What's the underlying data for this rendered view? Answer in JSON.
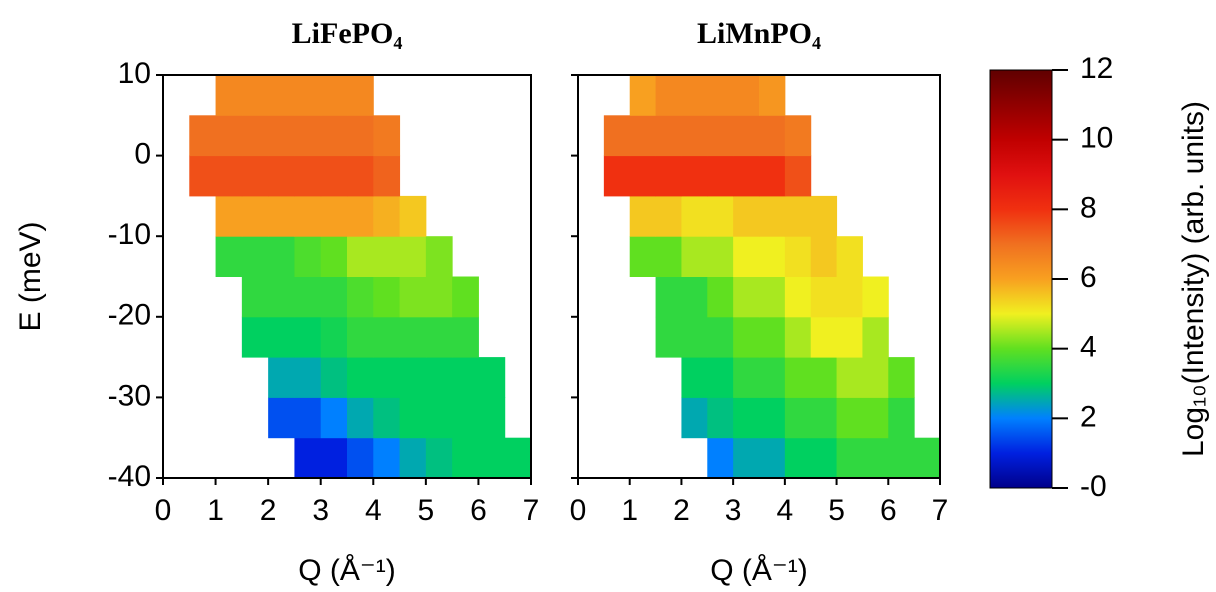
{
  "chart_data": [
    {
      "type": "heatmap",
      "title": "LiFePO₄",
      "xlabel": "Q (Å⁻¹)",
      "ylabel": "E (meV)",
      "xbins": [
        0,
        0.5,
        1,
        1.5,
        2,
        2.5,
        3,
        3.5,
        4,
        4.5,
        5,
        5.5,
        6,
        6.5,
        7
      ],
      "ybins": [
        -40,
        -35,
        -30,
        -25,
        -20,
        -15,
        -10,
        -5,
        0,
        5,
        10
      ],
      "z": [
        [
          null,
          null,
          null,
          null,
          null,
          1,
          1,
          1.5,
          2,
          2.5,
          2.8,
          3,
          3,
          3
        ],
        [
          null,
          null,
          null,
          null,
          1.5,
          1.5,
          2,
          2.5,
          2.8,
          3,
          3,
          3,
          3,
          null
        ],
        [
          null,
          null,
          null,
          null,
          2.5,
          2.5,
          2.8,
          3,
          3,
          3,
          3,
          3,
          3,
          null
        ],
        [
          null,
          null,
          null,
          3,
          3,
          3,
          3.2,
          3.5,
          3.5,
          3.5,
          3.5,
          3.5,
          null,
          null
        ],
        [
          null,
          null,
          null,
          3.5,
          3.5,
          3.5,
          3.5,
          3.8,
          4,
          4.2,
          4.2,
          4,
          null,
          null
        ],
        [
          null,
          null,
          3.5,
          3.5,
          3.5,
          3.8,
          4,
          4.5,
          4.5,
          4.5,
          4.2,
          null,
          null,
          null
        ],
        [
          null,
          null,
          6,
          6,
          6,
          6,
          6,
          6,
          5.8,
          5.5,
          null,
          null,
          null,
          null
        ],
        [
          null,
          7.5,
          7.5,
          7.5,
          7.5,
          7.5,
          7.5,
          7.5,
          7.2,
          null,
          null,
          null,
          null,
          null
        ],
        [
          null,
          7,
          7,
          7,
          7,
          7,
          7,
          7,
          6.8,
          null,
          null,
          null,
          null,
          null
        ],
        [
          null,
          null,
          6.5,
          6.5,
          6.5,
          6.5,
          6.5,
          6.5,
          null,
          null,
          null,
          null,
          null,
          null
        ]
      ],
      "xlim": [
        0,
        7
      ],
      "ylim": [
        -40,
        10
      ],
      "xticks": [
        0,
        1,
        2,
        3,
        4,
        5,
        6,
        7
      ],
      "yticks": [
        -40,
        -30,
        -20,
        -10,
        0,
        10
      ]
    },
    {
      "type": "heatmap",
      "title": "LiMnPO₄",
      "xlabel": "Q (Å⁻¹)",
      "xbins": [
        0,
        0.5,
        1,
        1.5,
        2,
        2.5,
        3,
        3.5,
        4,
        4.5,
        5,
        5.5,
        6,
        6.5,
        7
      ],
      "ybins": [
        -40,
        -35,
        -30,
        -25,
        -20,
        -15,
        -10,
        -5,
        0,
        5,
        10
      ],
      "z": [
        [
          null,
          null,
          null,
          null,
          null,
          2,
          2.5,
          2.5,
          3,
          3,
          3.5,
          3.5,
          3.5,
          3.5
        ],
        [
          null,
          null,
          null,
          null,
          2.5,
          2.8,
          3,
          3,
          3.5,
          3.5,
          4,
          4,
          3.5,
          null
        ],
        [
          null,
          null,
          null,
          null,
          3,
          3,
          3.5,
          3.5,
          4,
          4,
          4.5,
          4.5,
          4,
          null
        ],
        [
          null,
          null,
          null,
          3.5,
          3.5,
          3.5,
          4,
          4,
          4.5,
          5,
          5,
          4.5,
          null,
          null
        ],
        [
          null,
          null,
          null,
          3.5,
          3.5,
          4,
          4.5,
          4.5,
          5,
          5.2,
          5.2,
          5,
          null,
          null
        ],
        [
          null,
          null,
          4,
          4,
          4.5,
          4.5,
          5,
          5,
          5.2,
          5.5,
          5.2,
          null,
          null,
          null
        ],
        [
          null,
          null,
          5.5,
          5.5,
          5.2,
          5.2,
          5.5,
          5.5,
          5.5,
          5.5,
          null,
          null,
          null,
          null
        ],
        [
          null,
          8,
          8,
          8,
          8,
          8,
          8,
          8,
          7.5,
          null,
          null,
          null,
          null,
          null
        ],
        [
          null,
          7,
          7,
          7,
          7,
          7,
          7,
          7,
          6.8,
          null,
          null,
          null,
          null,
          null
        ],
        [
          null,
          null,
          6,
          6.5,
          6.5,
          6.5,
          6.5,
          6.2,
          null,
          null,
          null,
          null,
          null,
          null
        ]
      ],
      "xlim": [
        0,
        7
      ],
      "ylim": [
        -40,
        10
      ],
      "xticks": [
        0,
        1,
        2,
        3,
        4,
        5,
        6,
        7
      ],
      "yticks": [
        -40,
        -30,
        -20,
        -10,
        0,
        10
      ]
    }
  ],
  "colorbar": {
    "label": "Log₁₀(Intensity) (arb. units)",
    "clim": [
      0,
      12
    ],
    "ticks": [
      {
        "value": 0,
        "label": "-0"
      },
      2,
      4,
      6,
      8,
      10,
      12
    ],
    "colorscale": [
      "#00008a",
      "#0020e0",
      "#0080ff",
      "#00d060",
      "#60e020",
      "#f0f020",
      "#f8a020",
      "#f07020",
      "#f03010",
      "#e01010",
      "#c00000",
      "#900000",
      "#600000"
    ]
  }
}
